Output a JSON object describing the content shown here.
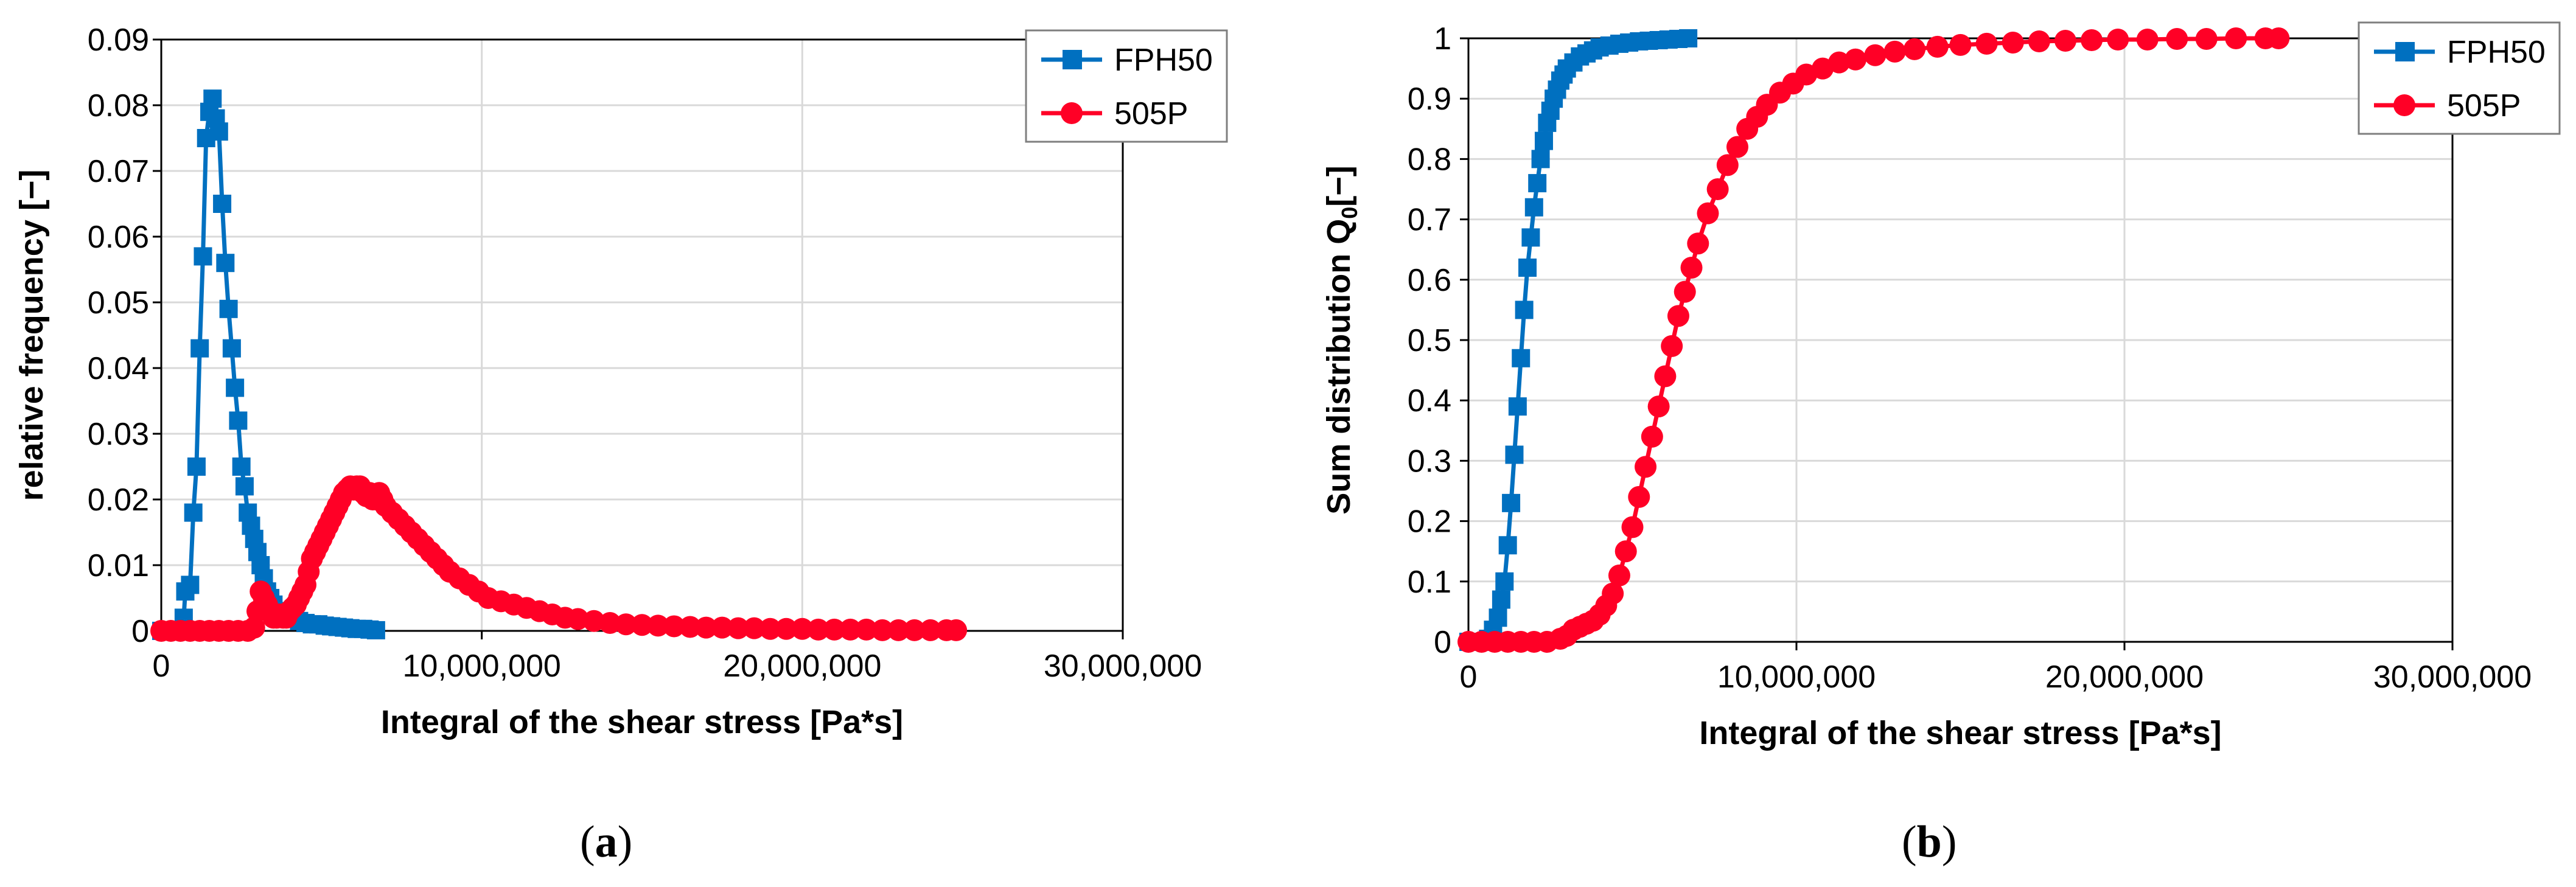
{
  "colors": {
    "fph50": "#0070C0",
    "p505": "#FF0026",
    "grid": "#D9D9D9",
    "axis": "#000000"
  },
  "captions": {
    "a_open": "(",
    "a_letter": "a",
    "a_close": ")",
    "b_open": "(",
    "b_letter": "b",
    "b_close": ")"
  },
  "chart_data": [
    {
      "id": "a",
      "type": "line",
      "xlabel": "Integral of the shear stress [Pa*s]",
      "ylabel": "relative frequency [−]",
      "xlim": [
        0,
        30000000
      ],
      "ylim": [
        0,
        0.09
      ],
      "xticks": [
        "0",
        "10,000,000",
        "20,000,000",
        "30,000,000"
      ],
      "yticks": [
        "0",
        "0.01",
        "0.02",
        "0.03",
        "0.04",
        "0.05",
        "0.06",
        "0.07",
        "0.08",
        "0.09"
      ],
      "grid": true,
      "legend": "top-right",
      "series": [
        {
          "name": "FPH50",
          "marker": "square",
          "points": [
            [
              0,
              0
            ],
            [
              200000,
              0
            ],
            [
              400000,
              0
            ],
            [
              600000,
              0
            ],
            [
              700000,
              0.002
            ],
            [
              750000,
              0.006
            ],
            [
              900000,
              0.007
            ],
            [
              1000000,
              0.018
            ],
            [
              1100000,
              0.025
            ],
            [
              1200000,
              0.043
            ],
            [
              1300000,
              0.057
            ],
            [
              1400000,
              0.075
            ],
            [
              1500000,
              0.079
            ],
            [
              1600000,
              0.081
            ],
            [
              1700000,
              0.078
            ],
            [
              1800000,
              0.076
            ],
            [
              1900000,
              0.065
            ],
            [
              2000000,
              0.056
            ],
            [
              2100000,
              0.049
            ],
            [
              2200000,
              0.043
            ],
            [
              2300000,
              0.037
            ],
            [
              2400000,
              0.032
            ],
            [
              2500000,
              0.025
            ],
            [
              2600000,
              0.022
            ],
            [
              2700000,
              0.018
            ],
            [
              2800000,
              0.016
            ],
            [
              2900000,
              0.014
            ],
            [
              3000000,
              0.012
            ],
            [
              3100000,
              0.01
            ],
            [
              3200000,
              0.008
            ],
            [
              3300000,
              0.006
            ],
            [
              3400000,
              0.005
            ],
            [
              3500000,
              0.004
            ],
            [
              3700000,
              0.003
            ],
            [
              3900000,
              0.003
            ],
            [
              4100000,
              0.002
            ],
            [
              4300000,
              0.0015
            ],
            [
              4500000,
              0.0012
            ],
            [
              4700000,
              0.001
            ],
            [
              4900000,
              0.001
            ],
            [
              5100000,
              0.0008
            ],
            [
              5300000,
              0.0007
            ],
            [
              5500000,
              0.0006
            ],
            [
              5700000,
              0.0005
            ],
            [
              5900000,
              0.0004
            ],
            [
              6100000,
              0.0003
            ],
            [
              6300000,
              0.0003
            ],
            [
              6500000,
              0.0002
            ],
            [
              6700000,
              0.0001
            ]
          ]
        },
        {
          "name": "505P",
          "marker": "circle",
          "points": [
            [
              0,
              0
            ],
            [
              300000,
              0
            ],
            [
              600000,
              0
            ],
            [
              900000,
              0
            ],
            [
              1200000,
              0
            ],
            [
              1500000,
              0
            ],
            [
              1800000,
              0
            ],
            [
              2100000,
              0
            ],
            [
              2400000,
              0
            ],
            [
              2700000,
              0
            ],
            [
              2900000,
              0.0005
            ],
            [
              3000000,
              0.003
            ],
            [
              3100000,
              0.006
            ],
            [
              3200000,
              0.005
            ],
            [
              3300000,
              0.004
            ],
            [
              3400000,
              0.003
            ],
            [
              3500000,
              0.002
            ],
            [
              3600000,
              0.002
            ],
            [
              3700000,
              0.0025
            ],
            [
              3800000,
              0.002
            ],
            [
              3900000,
              0.002
            ],
            [
              4000000,
              0.003
            ],
            [
              4100000,
              0.0035
            ],
            [
              4200000,
              0.004
            ],
            [
              4300000,
              0.005
            ],
            [
              4400000,
              0.006
            ],
            [
              4500000,
              0.007
            ],
            [
              4600000,
              0.009
            ],
            [
              4700000,
              0.011
            ],
            [
              4800000,
              0.012
            ],
            [
              4900000,
              0.013
            ],
            [
              5000000,
              0.014
            ],
            [
              5100000,
              0.015
            ],
            [
              5200000,
              0.016
            ],
            [
              5300000,
              0.017
            ],
            [
              5400000,
              0.018
            ],
            [
              5500000,
              0.019
            ],
            [
              5600000,
              0.02
            ],
            [
              5700000,
              0.021
            ],
            [
              5800000,
              0.0215
            ],
            [
              5900000,
              0.022
            ],
            [
              6000000,
              0.0215
            ],
            [
              6100000,
              0.022
            ],
            [
              6200000,
              0.022
            ],
            [
              6300000,
              0.021
            ],
            [
              6400000,
              0.0205
            ],
            [
              6500000,
              0.021
            ],
            [
              6600000,
              0.02
            ],
            [
              6700000,
              0.02
            ],
            [
              6800000,
              0.021
            ],
            [
              6900000,
              0.02
            ],
            [
              7000000,
              0.019
            ],
            [
              7200000,
              0.018
            ],
            [
              7400000,
              0.017
            ],
            [
              7600000,
              0.016
            ],
            [
              7800000,
              0.015
            ],
            [
              8000000,
              0.014
            ],
            [
              8200000,
              0.013
            ],
            [
              8400000,
              0.012
            ],
            [
              8600000,
              0.011
            ],
            [
              8800000,
              0.01
            ],
            [
              9000000,
              0.009
            ],
            [
              9300000,
              0.008
            ],
            [
              9600000,
              0.007
            ],
            [
              9900000,
              0.006
            ],
            [
              10200000,
              0.005
            ],
            [
              10600000,
              0.0045
            ],
            [
              11000000,
              0.004
            ],
            [
              11400000,
              0.0035
            ],
            [
              11800000,
              0.003
            ],
            [
              12200000,
              0.0025
            ],
            [
              12600000,
              0.002
            ],
            [
              13000000,
              0.0018
            ],
            [
              13500000,
              0.0015
            ],
            [
              14000000,
              0.0012
            ],
            [
              14500000,
              0.001
            ],
            [
              15000000,
              0.0009
            ],
            [
              15500000,
              0.0008
            ],
            [
              16000000,
              0.0007
            ],
            [
              16500000,
              0.0006
            ],
            [
              17000000,
              0.0005
            ],
            [
              17500000,
              0.0005
            ],
            [
              18000000,
              0.0004
            ],
            [
              18500000,
              0.0004
            ],
            [
              19000000,
              0.0003
            ],
            [
              19500000,
              0.0003
            ],
            [
              20000000,
              0.0003
            ],
            [
              20500000,
              0.0002
            ],
            [
              21000000,
              0.0002
            ],
            [
              21500000,
              0.0002
            ],
            [
              22000000,
              0.0002
            ],
            [
              22500000,
              0.0001
            ],
            [
              23000000,
              0.0001
            ],
            [
              23500000,
              0.0001
            ],
            [
              24000000,
              0.0001
            ],
            [
              24500000,
              0.0001
            ],
            [
              24800000,
              0.0001
            ]
          ]
        }
      ]
    },
    {
      "id": "b",
      "type": "line",
      "xlabel": "Integral of the shear stress [Pa*s]",
      "ylabel_main": "Sum distribution Q",
      "ylabel_sub": "0",
      "ylabel_tail": "[−]",
      "xlim": [
        0,
        30000000
      ],
      "ylim": [
        0,
        1
      ],
      "xticks": [
        "0",
        "10,000,000",
        "20,000,000",
        "30,000,000"
      ],
      "yticks": [
        "0",
        "0.1",
        "0.2",
        "0.3",
        "0.4",
        "0.5",
        "0.6",
        "0.7",
        "0.8",
        "0.9",
        "1"
      ],
      "grid": true,
      "legend": "top-right",
      "series": [
        {
          "name": "FPH50",
          "marker": "square",
          "points": [
            [
              0,
              0
            ],
            [
              200000,
              0
            ],
            [
              400000,
              0
            ],
            [
              600000,
              0.005
            ],
            [
              750000,
              0.02
            ],
            [
              900000,
              0.04
            ],
            [
              1000000,
              0.07
            ],
            [
              1100000,
              0.1
            ],
            [
              1200000,
              0.16
            ],
            [
              1300000,
              0.23
            ],
            [
              1400000,
              0.31
            ],
            [
              1500000,
              0.39
            ],
            [
              1600000,
              0.47
            ],
            [
              1700000,
              0.55
            ],
            [
              1800000,
              0.62
            ],
            [
              1900000,
              0.67
            ],
            [
              2000000,
              0.72
            ],
            [
              2100000,
              0.76
            ],
            [
              2200000,
              0.8
            ],
            [
              2300000,
              0.83
            ],
            [
              2400000,
              0.86
            ],
            [
              2500000,
              0.88
            ],
            [
              2600000,
              0.9
            ],
            [
              2700000,
              0.915
            ],
            [
              2800000,
              0.93
            ],
            [
              2900000,
              0.94
            ],
            [
              3000000,
              0.95
            ],
            [
              3200000,
              0.96
            ],
            [
              3400000,
              0.97
            ],
            [
              3600000,
              0.975
            ],
            [
              3800000,
              0.98
            ],
            [
              4000000,
              0.985
            ],
            [
              4300000,
              0.988
            ],
            [
              4600000,
              0.991
            ],
            [
              4900000,
              0.993
            ],
            [
              5200000,
              0.995
            ],
            [
              5500000,
              0.996
            ],
            [
              5800000,
              0.997
            ],
            [
              6100000,
              0.998
            ],
            [
              6400000,
              0.999
            ],
            [
              6700000,
              1.0
            ]
          ]
        },
        {
          "name": "505P",
          "marker": "circle",
          "points": [
            [
              0,
              0
            ],
            [
              400000,
              0
            ],
            [
              800000,
              0
            ],
            [
              1200000,
              0
            ],
            [
              1600000,
              0
            ],
            [
              2000000,
              0
            ],
            [
              2400000,
              0
            ],
            [
              2800000,
              0.005
            ],
            [
              3000000,
              0.01
            ],
            [
              3200000,
              0.02
            ],
            [
              3400000,
              0.025
            ],
            [
              3600000,
              0.03
            ],
            [
              3800000,
              0.035
            ],
            [
              4000000,
              0.045
            ],
            [
              4200000,
              0.06
            ],
            [
              4400000,
              0.08
            ],
            [
              4600000,
              0.11
            ],
            [
              4800000,
              0.15
            ],
            [
              5000000,
              0.19
            ],
            [
              5200000,
              0.24
            ],
            [
              5400000,
              0.29
            ],
            [
              5600000,
              0.34
            ],
            [
              5800000,
              0.39
            ],
            [
              6000000,
              0.44
            ],
            [
              6200000,
              0.49
            ],
            [
              6400000,
              0.54
            ],
            [
              6600000,
              0.58
            ],
            [
              6800000,
              0.62
            ],
            [
              7000000,
              0.66
            ],
            [
              7300000,
              0.71
            ],
            [
              7600000,
              0.75
            ],
            [
              7900000,
              0.79
            ],
            [
              8200000,
              0.82
            ],
            [
              8500000,
              0.85
            ],
            [
              8800000,
              0.87
            ],
            [
              9100000,
              0.89
            ],
            [
              9500000,
              0.91
            ],
            [
              9900000,
              0.925
            ],
            [
              10300000,
              0.94
            ],
            [
              10800000,
              0.95
            ],
            [
              11300000,
              0.96
            ],
            [
              11800000,
              0.965
            ],
            [
              12400000,
              0.972
            ],
            [
              13000000,
              0.978
            ],
            [
              13600000,
              0.982
            ],
            [
              14300000,
              0.986
            ],
            [
              15000000,
              0.989
            ],
            [
              15800000,
              0.991
            ],
            [
              16600000,
              0.993
            ],
            [
              17400000,
              0.995
            ],
            [
              18200000,
              0.996
            ],
            [
              19000000,
              0.997
            ],
            [
              19800000,
              0.998
            ],
            [
              20700000,
              0.998
            ],
            [
              21600000,
              0.999
            ],
            [
              22500000,
              0.999
            ],
            [
              23400000,
              1.0
            ],
            [
              24300000,
              1.0
            ],
            [
              24700000,
              1.0
            ]
          ]
        }
      ]
    }
  ]
}
